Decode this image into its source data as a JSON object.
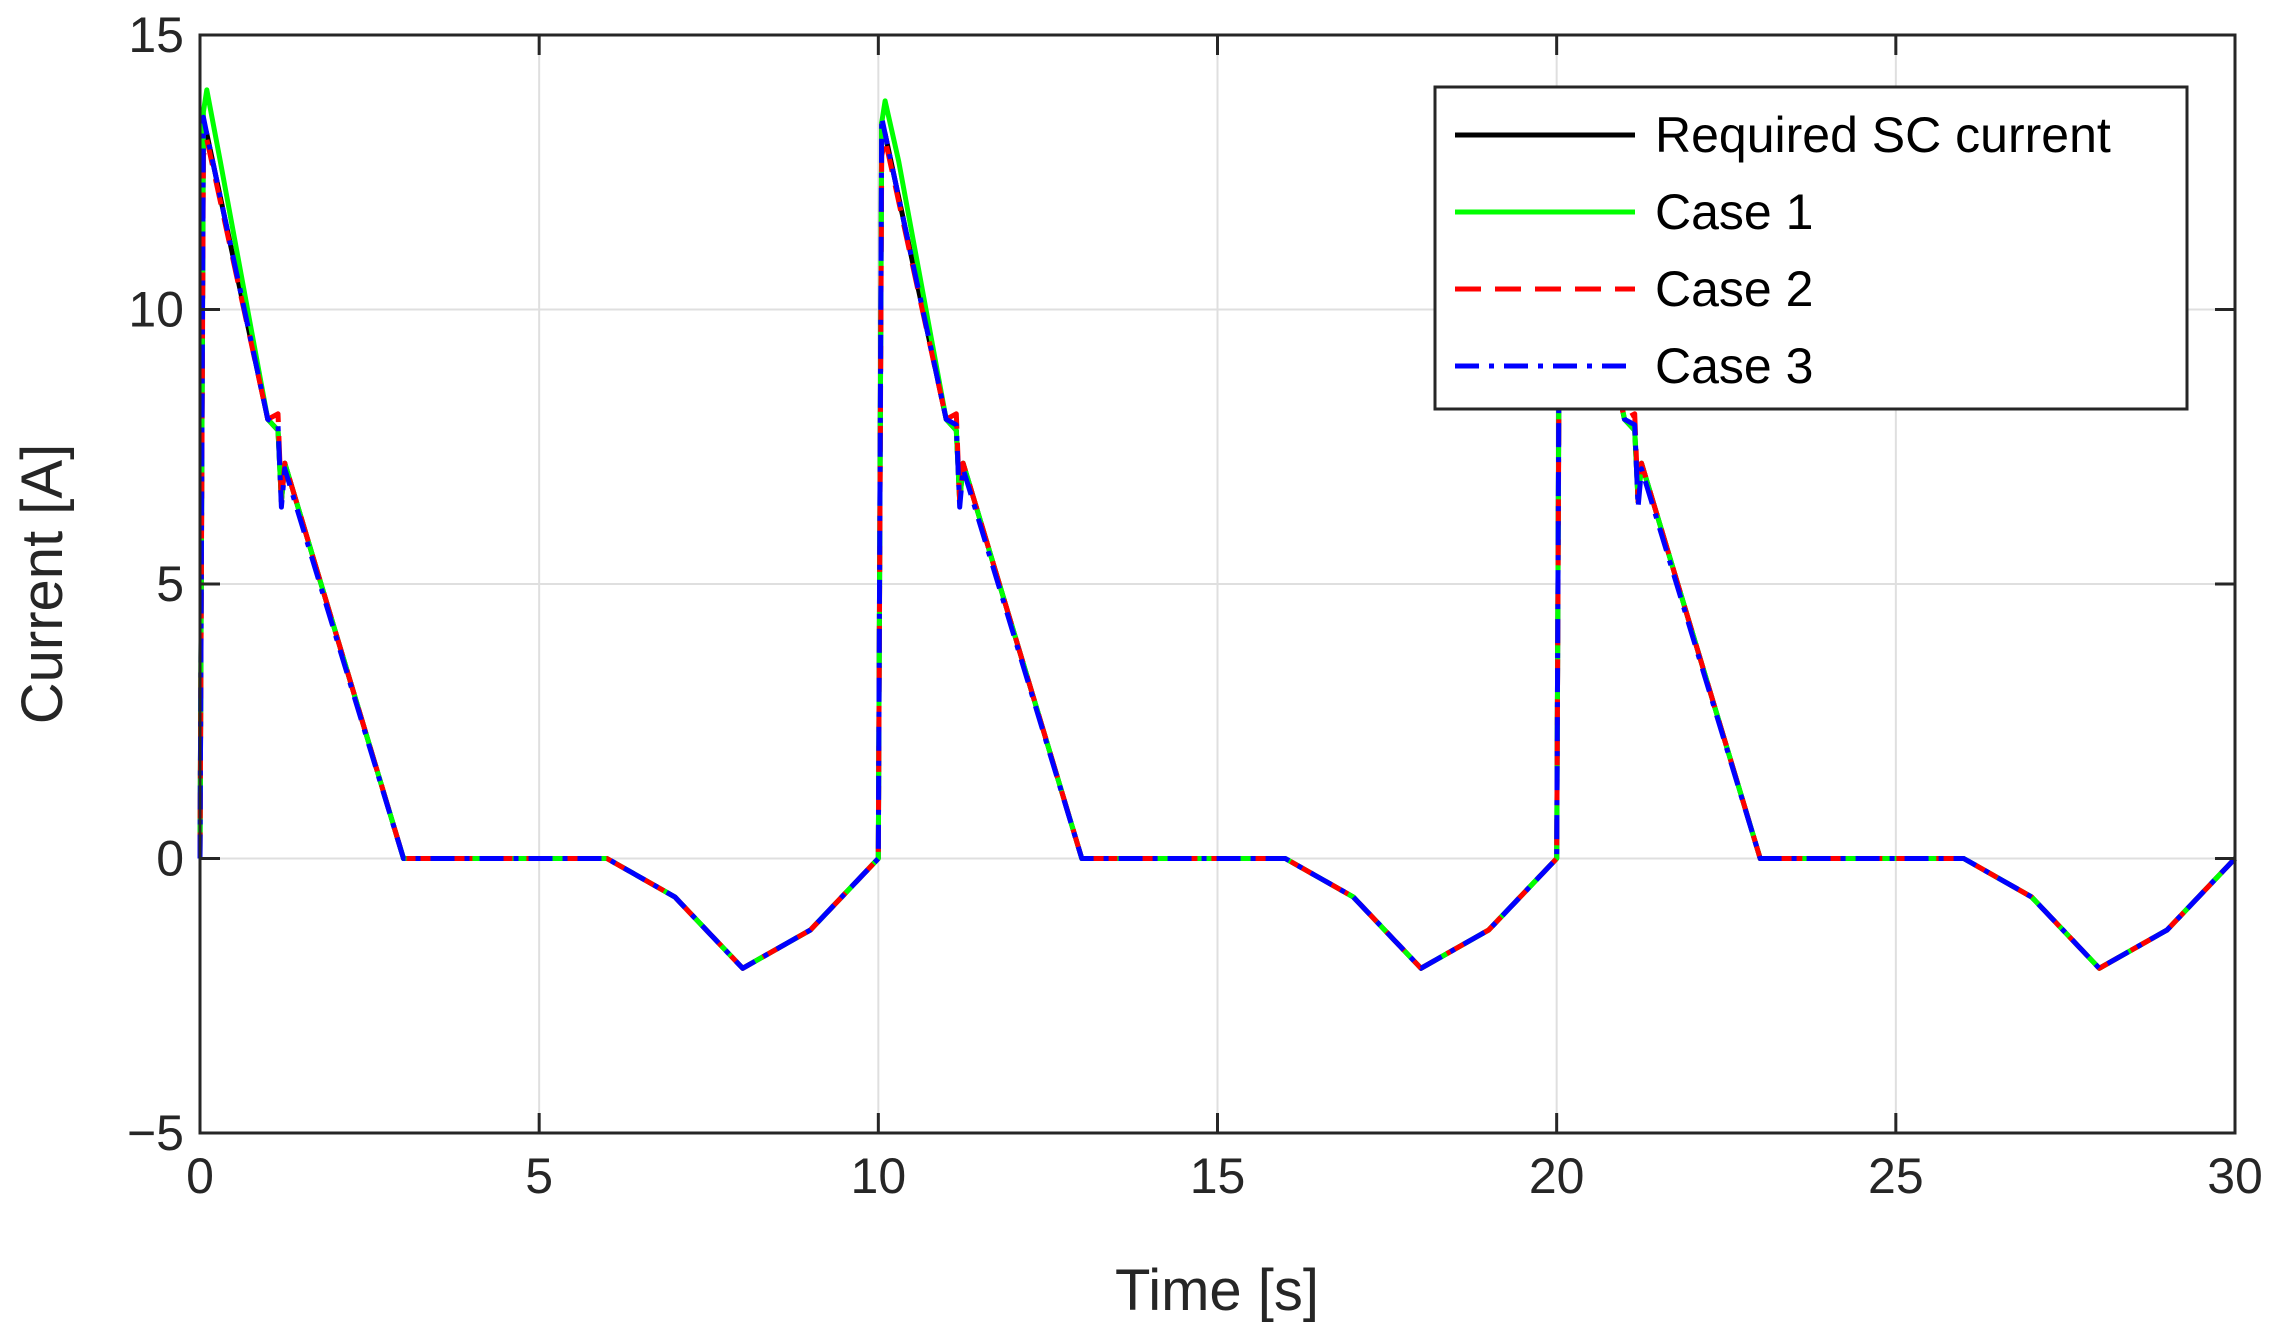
{
  "chart_data": {
    "type": "line",
    "xlabel": "Time [s]",
    "ylabel": "Current [A]",
    "xlim": [
      0,
      30
    ],
    "ylim": [
      -5,
      15
    ],
    "xticks": [
      0,
      5,
      10,
      15,
      20,
      25,
      30
    ],
    "yticks": [
      -5,
      0,
      5,
      10,
      15
    ],
    "xtick_labels": [
      "0",
      "5",
      "10",
      "15",
      "20",
      "25",
      "30"
    ],
    "ytick_labels": [
      "−5",
      "0",
      "5",
      "10",
      "15"
    ],
    "grid": true,
    "legend_position": "top-right",
    "series": [
      {
        "name": "Required SC current",
        "color": "#000000",
        "dash": "solid",
        "x": [
          0,
          0.05,
          0.1,
          1.0,
          1.15,
          1.2,
          1.25,
          3.0,
          6.0,
          7.0,
          8.0,
          9.0,
          10.0,
          10.05,
          10.1,
          11.0,
          11.15,
          11.2,
          11.25,
          13.0,
          16.0,
          17.0,
          18.0,
          19.0,
          20.0,
          20.05,
          20.1,
          21.0,
          21.15,
          21.2,
          21.25,
          23.0,
          26.0,
          27.0,
          28.0,
          29.0,
          30.0
        ],
        "y": [
          0,
          13.4,
          13.2,
          8.0,
          7.8,
          6.5,
          7.2,
          0,
          0,
          -0.7,
          -2.0,
          -1.3,
          0,
          13.4,
          13.2,
          8.0,
          7.8,
          6.5,
          7.2,
          0,
          0,
          -0.7,
          -2.0,
          -1.3,
          0,
          13.4,
          13.2,
          8.0,
          7.8,
          6.5,
          7.2,
          0,
          0,
          -0.7,
          -2.0,
          -1.3,
          0
        ]
      },
      {
        "name": "Case 1",
        "color": "#00ff00",
        "dash": "solid",
        "x": [
          0,
          0.05,
          0.1,
          0.3,
          1.0,
          1.15,
          1.2,
          1.25,
          3.0,
          6.0,
          7.0,
          8.0,
          9.0,
          10.0,
          10.05,
          10.1,
          10.3,
          11.0,
          11.15,
          11.2,
          11.25,
          13.0,
          16.0,
          17.0,
          18.0,
          19.0,
          20.0,
          20.05,
          20.1,
          20.3,
          21.0,
          21.15,
          21.2,
          21.25,
          23.0,
          26.0,
          27.0,
          28.0,
          29.0,
          30.0
        ],
        "y": [
          0,
          13.6,
          14.0,
          12.7,
          8.0,
          7.8,
          6.5,
          7.2,
          0,
          0,
          -0.7,
          -2.0,
          -1.3,
          0,
          13.4,
          13.8,
          12.7,
          8.0,
          7.8,
          6.5,
          7.2,
          0,
          0,
          -0.7,
          -2.0,
          -1.3,
          0,
          13.4,
          13.8,
          12.7,
          8.0,
          7.8,
          6.5,
          7.2,
          0,
          0,
          -0.7,
          -2.0,
          -1.3,
          0
        ]
      },
      {
        "name": "Case 2",
        "color": "#ff0000",
        "dash": "dashed",
        "x": [
          0,
          0.05,
          0.1,
          1.0,
          1.15,
          1.2,
          1.25,
          3.0,
          6.0,
          7.0,
          8.0,
          9.0,
          10.0,
          10.05,
          10.1,
          11.0,
          11.15,
          11.2,
          11.25,
          13.0,
          16.0,
          17.0,
          18.0,
          19.0,
          20.0,
          20.05,
          20.1,
          21.0,
          21.15,
          21.2,
          21.25,
          23.0,
          26.0,
          27.0,
          28.0,
          29.0,
          30.0
        ],
        "y": [
          0,
          12.8,
          13.1,
          8.0,
          8.1,
          6.5,
          7.2,
          0,
          0,
          -0.7,
          -2.0,
          -1.3,
          0,
          12.8,
          13.1,
          8.0,
          8.1,
          6.5,
          7.2,
          0,
          0,
          -0.7,
          -2.0,
          -1.3,
          0,
          12.8,
          13.1,
          8.0,
          8.1,
          6.5,
          7.2,
          0,
          0,
          -0.7,
          -2.0,
          -1.3,
          0
        ]
      },
      {
        "name": "Case 3",
        "color": "#0000ff",
        "dash": "dashdot",
        "x": [
          0,
          0.05,
          0.1,
          1.0,
          1.15,
          1.2,
          1.25,
          3.0,
          6.0,
          7.0,
          8.0,
          9.0,
          10.0,
          10.05,
          10.1,
          11.0,
          11.15,
          11.2,
          11.25,
          13.0,
          16.0,
          17.0,
          18.0,
          19.0,
          20.0,
          20.05,
          20.1,
          21.0,
          21.15,
          21.2,
          21.25,
          23.0,
          26.0,
          27.0,
          28.0,
          29.0,
          30.0
        ],
        "y": [
          0,
          13.5,
          13.2,
          8.0,
          7.9,
          6.4,
          7.1,
          0,
          0,
          -0.7,
          -2.0,
          -1.3,
          0,
          13.5,
          13.2,
          8.0,
          7.9,
          6.4,
          7.1,
          0,
          0,
          -0.7,
          -2.0,
          -1.3,
          0,
          13.5,
          13.2,
          8.0,
          7.9,
          6.4,
          7.1,
          0,
          0,
          -0.7,
          -2.0,
          -1.3,
          0
        ]
      }
    ]
  }
}
